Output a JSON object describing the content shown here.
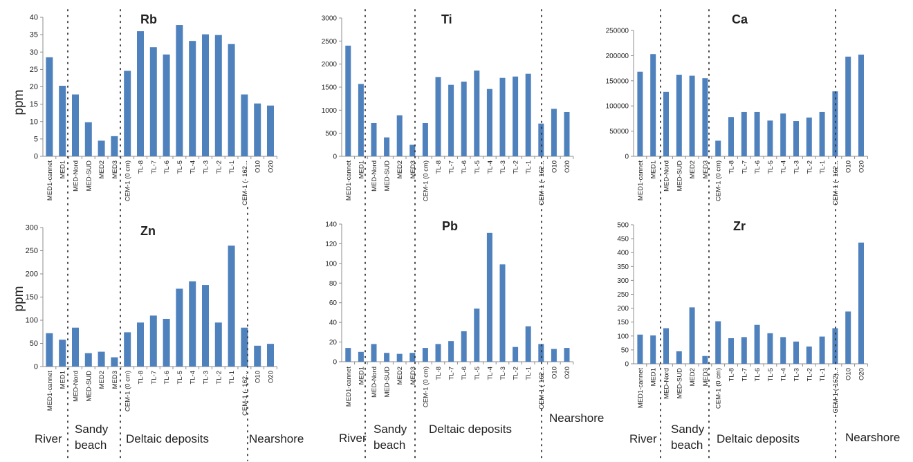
{
  "figure": {
    "ylabel": "ppm",
    "groups": [
      "River",
      "Sandy beach",
      "Deltaic deposits",
      "Nearshore"
    ],
    "bar_color": "#4F81BD"
  },
  "chart_data": [
    {
      "type": "bar",
      "title": "Rb",
      "ylabel": "ppm",
      "ylim": [
        0,
        40
      ],
      "yticks": [
        0,
        5,
        10,
        15,
        20,
        25,
        30,
        35,
        40
      ],
      "categories": [
        "MED1-cannet",
        "MED1",
        "MED-Nord",
        "MED-SUD",
        "MED2",
        "MED3",
        "CEM-1 (0 cm)",
        "TL-8",
        "TL-7",
        "TL-6",
        "TL-5",
        "TL-4",
        "TL-3",
        "TL-2",
        "TL-1",
        "CEM-1 (- 162...",
        "O10",
        "O20"
      ],
      "values": [
        28.5,
        20.3,
        17.8,
        9.8,
        4.5,
        5.8,
        24.6,
        36.0,
        31.4,
        29.3,
        37.8,
        33.2,
        35.1,
        34.9,
        32.3,
        17.8,
        15.2,
        14.6
      ]
    },
    {
      "type": "bar",
      "title": "Ti",
      "ylim": [
        0,
        3000
      ],
      "yticks": [
        0,
        500,
        1000,
        1500,
        2000,
        2500,
        3000
      ],
      "categories": [
        "MED1-cannet",
        "MED1",
        "MED-Nord",
        "MED-SUD",
        "MED2",
        "MED3",
        "CEM-1 (0 cm)",
        "TL-8",
        "TL-7",
        "TL-6",
        "TL-5",
        "TL-4",
        "TL-3",
        "TL-2",
        "TL-1",
        "CEM-1 (- 162...",
        "O10",
        "O20"
      ],
      "values": [
        2400,
        1570,
        720,
        410,
        890,
        250,
        720,
        1720,
        1550,
        1620,
        1860,
        1460,
        1700,
        1730,
        1790,
        710,
        1030,
        960
      ]
    },
    {
      "type": "bar",
      "title": "Ca",
      "ylim": [
        0,
        250000
      ],
      "yticks": [
        0,
        50000,
        100000,
        150000,
        200000,
        250000
      ],
      "categories": [
        "MED1-cannet",
        "MED1",
        "MED-Nord",
        "MED-SUD",
        "MED2",
        "MED3",
        "CEM-1 (0 cm)",
        "TL-8",
        "TL-7",
        "TL-6",
        "TL-5",
        "TL-4",
        "TL-3",
        "TL-2",
        "TL-1",
        "CEM-1 (- 162...",
        "O10",
        "O20"
      ],
      "values": [
        168000,
        203000,
        128000,
        162000,
        160000,
        155000,
        31000,
        78000,
        88000,
        88000,
        71000,
        85000,
        70000,
        77000,
        88000,
        129000,
        198000,
        202000
      ]
    },
    {
      "type": "bar",
      "title": "Zn",
      "ylabel": "ppm",
      "ylim": [
        0,
        300
      ],
      "yticks": [
        0,
        50,
        100,
        150,
        200,
        250,
        300
      ],
      "categories": [
        "MED1-cannet",
        "MED1",
        "MED-Nord",
        "MED-SUD",
        "MED2",
        "MED3",
        "CEM-1 (0 cm)",
        "TL-8",
        "TL-7",
        "TL-6",
        "TL-5",
        "TL-4",
        "TL-3",
        "TL-2",
        "TL-1",
        "CEM-1 (- 162...",
        "O10",
        "O20"
      ],
      "values": [
        72,
        58,
        84,
        29,
        32,
        20,
        74,
        95,
        110,
        103,
        168,
        184,
        176,
        95,
        261,
        84,
        45,
        49
      ]
    },
    {
      "type": "bar",
      "title": "Pb",
      "ylim": [
        0,
        140
      ],
      "yticks": [
        0,
        20,
        40,
        60,
        80,
        100,
        120,
        140
      ],
      "categories": [
        "MED1-cannet",
        "MED1",
        "MED-Nord",
        "MED-SUD",
        "MED2",
        "MED3",
        "CEM-1 (0 cm)",
        "TL-8",
        "TL-7",
        "TL-6",
        "TL-5",
        "TL-4",
        "TL-3",
        "TL-2",
        "TL-1",
        "CEM-1 ( 162...",
        "O10",
        "O20"
      ],
      "values": [
        14,
        10,
        18,
        9,
        8,
        9,
        14,
        18,
        21,
        31,
        54,
        131,
        99,
        15,
        36,
        18,
        13,
        14
      ]
    },
    {
      "type": "bar",
      "title": "Zr",
      "ylim": [
        0,
        500
      ],
      "yticks": [
        0,
        50,
        100,
        150,
        200,
        250,
        300,
        350,
        400,
        450,
        500
      ],
      "categories": [
        "MED1-cannet",
        "MED1",
        "MED-Nord",
        "MED-SUD",
        "MED2",
        "MED3",
        "CEM-1 (0 cm)",
        "TL-8",
        "TL-7",
        "TL-6",
        "TL-5",
        "TL-4",
        "TL-3",
        "TL-2",
        "TL-1",
        "CEM-1 (-162)...",
        "O10",
        "O20"
      ],
      "values": [
        105,
        102,
        128,
        45,
        203,
        28,
        153,
        92,
        96,
        140,
        110,
        96,
        80,
        62,
        98,
        128,
        188,
        436
      ]
    }
  ]
}
